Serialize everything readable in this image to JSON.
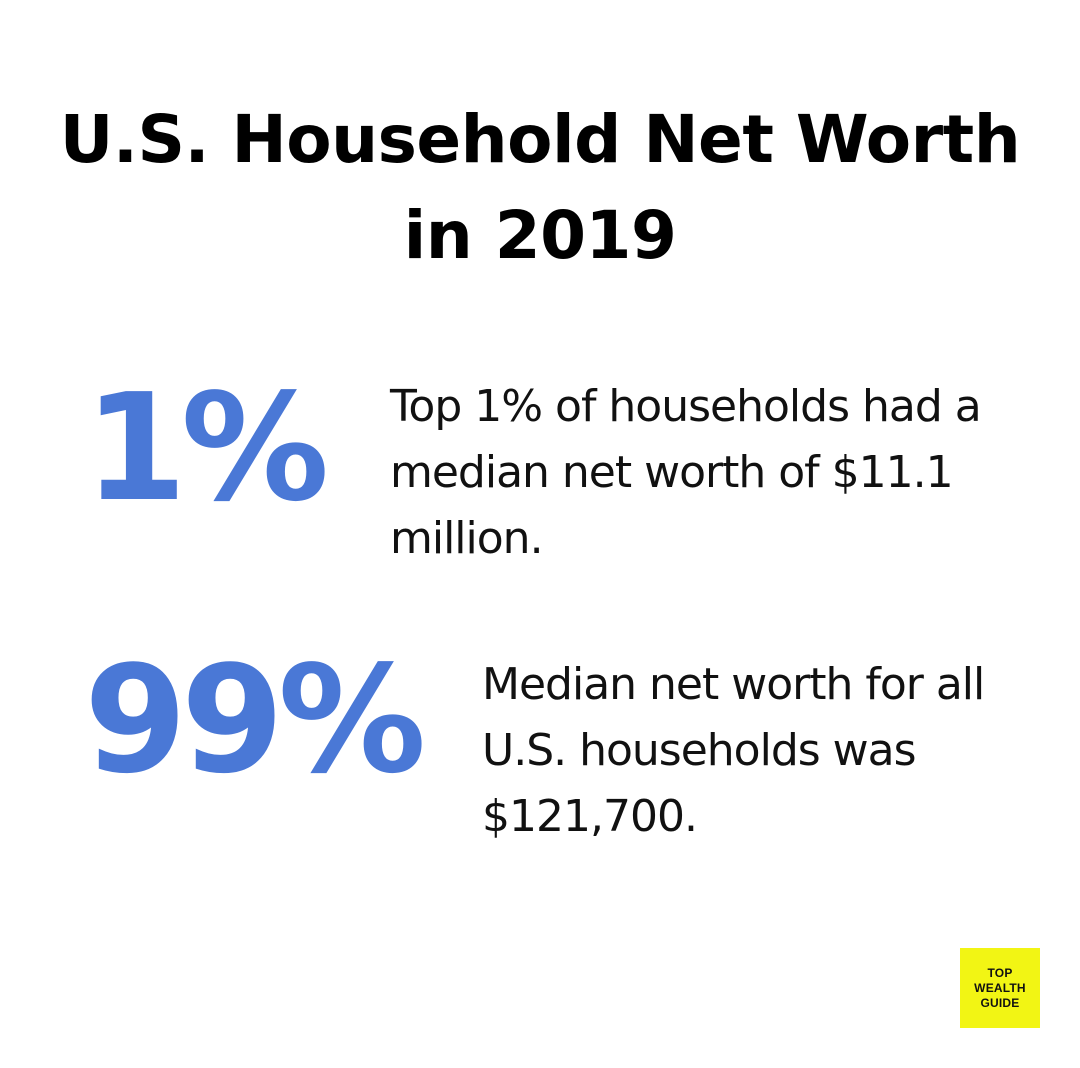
{
  "title": {
    "line1": "U.S. Household Net Worth",
    "line2": "in 2019"
  },
  "stats": [
    {
      "value": "1%",
      "description": "Top 1% of households had a median net worth of $11.1 million."
    },
    {
      "value": "99%",
      "description": "Median net worth for all U.S. households was $121,700."
    }
  ],
  "colors": {
    "accent": "#4a78d6",
    "logo_background": "#f2f514",
    "text": "#111111",
    "background": "#ffffff"
  },
  "logo": {
    "line1": "TOP",
    "line2": "WEALTH",
    "line3": "GUIDE"
  }
}
